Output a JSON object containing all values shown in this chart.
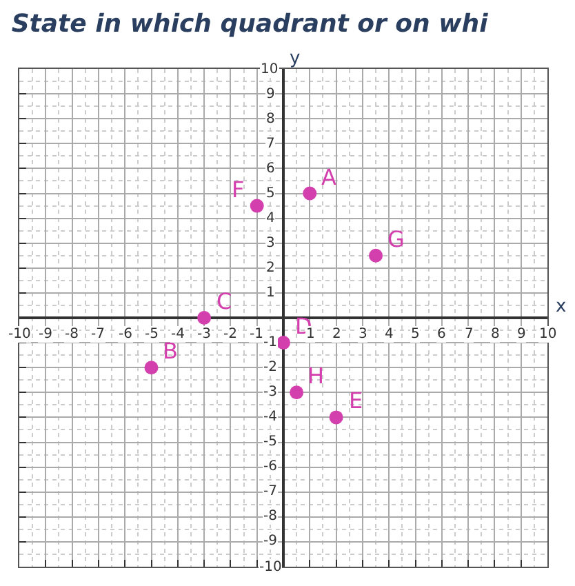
{
  "chart_data": {
    "type": "scatter",
    "title": "State in which quadrant or on whi",
    "ylabel": "y",
    "xlabel": "x",
    "x": [
      1,
      -1,
      3.5,
      -3,
      -5,
      0,
      0.5,
      2
    ],
    "series": [
      {
        "color": "#d43fae",
        "values": [
          5,
          4.5,
          2.5,
          0,
          -2,
          -1,
          -3,
          -4
        ]
      }
    ],
    "annotations": [
      {
        "text": "A",
        "x": 1,
        "y": 5
      },
      {
        "text": "F",
        "x": -1,
        "y": 4.5
      },
      {
        "text": "G",
        "x": 3.5,
        "y": 2.5
      },
      {
        "text": "C",
        "x": -3,
        "y": 0
      },
      {
        "text": "B",
        "x": -5,
        "y": -2
      },
      {
        "text": "D",
        "x": 0,
        "y": -1
      },
      {
        "text": "H",
        "x": 0.5,
        "y": -3
      },
      {
        "text": "E",
        "x": 2,
        "y": -4
      }
    ],
    "xlim": [
      -10,
      10
    ],
    "ylim": [
      -10,
      10
    ],
    "xticks": [
      -10,
      -9,
      -8,
      -7,
      -6,
      -5,
      -4,
      -3,
      -2,
      -1,
      1,
      2,
      3,
      4,
      5,
      6,
      7,
      8,
      9,
      10
    ],
    "yticks": [
      -10,
      -9,
      -8,
      -7,
      -6,
      -5,
      -4,
      -3,
      -2,
      -1,
      1,
      2,
      3,
      4,
      5,
      6,
      7,
      8,
      9,
      10
    ],
    "grid": true,
    "marker": "circle"
  }
}
